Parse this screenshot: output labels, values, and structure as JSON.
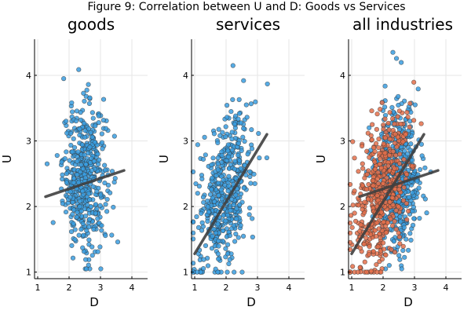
{
  "figure": {
    "suptitle": "Figure 9: Correlation between U and D: Goods vs Services"
  },
  "colors": {
    "goods": "#3a9de0",
    "services": "#e4704b",
    "point_edge": "#333333",
    "fit_line": "#3f3f3f"
  },
  "chart_data": [
    {
      "type": "scatter",
      "title": "goods",
      "xlabel": "D",
      "ylabel": "U",
      "xlim": [
        0.9,
        4.5
      ],
      "ylim": [
        0.9,
        4.55
      ],
      "xticks": [
        1,
        2,
        3,
        4
      ],
      "yticks": [
        1,
        2,
        3,
        4
      ],
      "grid": true,
      "series": [
        {
          "color_key": "goods",
          "cloud": {
            "x_center": 2.5,
            "x_sd": 0.35,
            "y_center": 2.45,
            "y_sd": 0.55,
            "x_range": [
              1.3,
              3.7
            ],
            "y_range": [
              1.05,
              4.35
            ],
            "n": 500
          }
        }
      ],
      "fit_lines": [
        {
          "color_key": "fit_line",
          "x": [
            1.25,
            3.75
          ],
          "y": [
            2.15,
            2.55
          ]
        }
      ]
    },
    {
      "type": "scatter",
      "title": "services",
      "xlabel": "D",
      "ylabel": "U",
      "xlim": [
        0.9,
        4.5
      ],
      "ylim": [
        0.9,
        4.55
      ],
      "xticks": [
        1,
        2,
        3,
        4
      ],
      "yticks": [
        1,
        2,
        3,
        4
      ],
      "grid": true,
      "series": [
        {
          "color_key": "goods",
          "cloud": {
            "x_center": 1.95,
            "x_sd": 0.45,
            "y_center": 2.2,
            "y_sd": 0.55,
            "x_range": [
              0.95,
              3.4
            ],
            "y_range": [
              1.0,
              4.4
            ],
            "n": 500,
            "slope": 0.55
          }
        }
      ],
      "fit_lines": [
        {
          "color_key": "fit_line",
          "x": [
            1.0,
            3.3
          ],
          "y": [
            1.28,
            3.1
          ]
        }
      ]
    },
    {
      "type": "scatter",
      "title": "all industries",
      "xlabel": "D",
      "ylabel": "U",
      "xlim": [
        0.9,
        4.5
      ],
      "ylim": [
        0.9,
        4.55
      ],
      "xticks": [
        1,
        2,
        3,
        4
      ],
      "yticks": [
        1,
        2,
        3,
        4
      ],
      "grid": true,
      "series": [
        {
          "color_key": "goods",
          "cloud": {
            "x_center": 2.5,
            "x_sd": 0.35,
            "y_center": 2.45,
            "y_sd": 0.55,
            "x_range": [
              1.3,
              3.7
            ],
            "y_range": [
              1.05,
              4.35
            ],
            "n": 500
          }
        },
        {
          "color_key": "services",
          "cloud": {
            "x_center": 1.95,
            "x_sd": 0.45,
            "y_center": 2.2,
            "y_sd": 0.55,
            "x_range": [
              0.95,
              3.4
            ],
            "y_range": [
              1.0,
              4.4
            ],
            "n": 500,
            "slope": 0.55
          }
        }
      ],
      "fit_lines": [
        {
          "color_key": "fit_line",
          "x": [
            1.25,
            3.75
          ],
          "y": [
            2.15,
            2.55
          ]
        },
        {
          "color_key": "fit_line",
          "x": [
            1.0,
            3.3
          ],
          "y": [
            1.28,
            3.1
          ]
        }
      ]
    }
  ]
}
